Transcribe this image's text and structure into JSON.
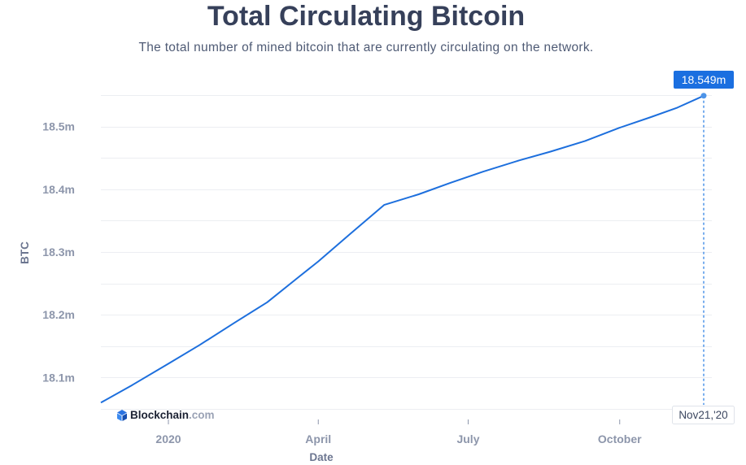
{
  "chart_data": {
    "type": "line",
    "title": "Total Circulating Bitcoin",
    "subtitle": "The total number of mined bitcoin that are currently circulating on the network.",
    "ylabel": "BTC",
    "xlabel": "Date",
    "y_ticks": [
      {
        "value": 18.1,
        "label": "18.1m"
      },
      {
        "value": 18.2,
        "label": "18.2m"
      },
      {
        "value": 18.3,
        "label": "18.3m"
      },
      {
        "value": 18.4,
        "label": "18.4m"
      },
      {
        "value": 18.5,
        "label": "18.5m"
      }
    ],
    "x_ticks": [
      {
        "value": "2020-01-01",
        "label": "2020"
      },
      {
        "value": "2020-04-01",
        "label": "April"
      },
      {
        "value": "2020-07-01",
        "label": "July"
      },
      {
        "value": "2020-10-01",
        "label": "October"
      }
    ],
    "xlim": [
      "2019-11-21",
      "2020-11-21"
    ],
    "ylim": [
      18.05,
      18.55
    ],
    "grid": true,
    "series": [
      {
        "color": "#1d6fdd",
        "points": [
          [
            "2019-11-21",
            18.06
          ],
          [
            "2019-12-10",
            18.088
          ],
          [
            "2020-01-01",
            18.122
          ],
          [
            "2020-01-20",
            18.152
          ],
          [
            "2020-02-10",
            18.187
          ],
          [
            "2020-03-01",
            18.22
          ],
          [
            "2020-03-20",
            18.26
          ],
          [
            "2020-04-01",
            18.285
          ],
          [
            "2020-04-20",
            18.328
          ],
          [
            "2020-05-11",
            18.375
          ],
          [
            "2020-06-01",
            18.392
          ],
          [
            "2020-06-20",
            18.41
          ],
          [
            "2020-07-10",
            18.428
          ],
          [
            "2020-08-01",
            18.446
          ],
          [
            "2020-08-20",
            18.46
          ],
          [
            "2020-09-10",
            18.477
          ],
          [
            "2020-10-01",
            18.498
          ],
          [
            "2020-10-20",
            18.515
          ],
          [
            "2020-11-05",
            18.53
          ],
          [
            "2020-11-21",
            18.549
          ]
        ]
      }
    ],
    "tooltip": {
      "value_label": "18.549m",
      "date_label": "Nov21,'20",
      "date": "2020-11-21",
      "value": 18.549
    }
  },
  "brand": {
    "name": "Blockchain",
    "suffix": ".com",
    "icon": "blockchain-logo-icon"
  }
}
